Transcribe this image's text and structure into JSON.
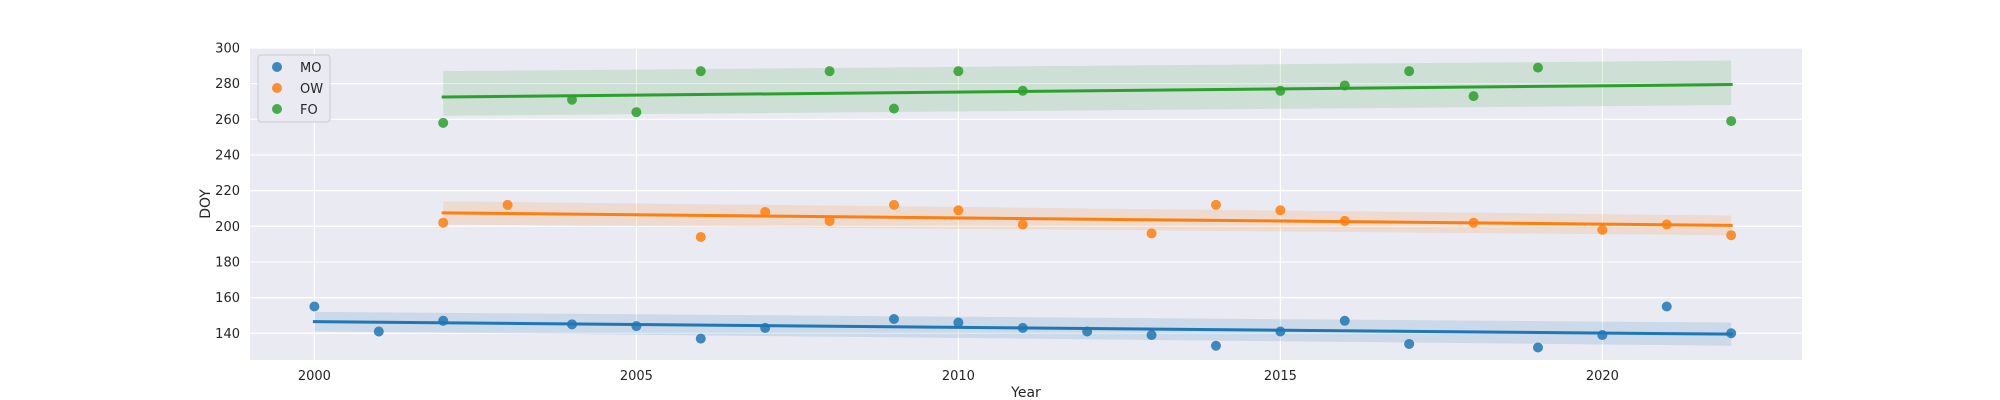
{
  "chart_data": {
    "type": "scatter",
    "title": "",
    "xlabel": "Year",
    "ylabel": "DOY",
    "xlim": [
      1999,
      2023.1
    ],
    "ylim": [
      125,
      300
    ],
    "xticks": [
      2000,
      2005,
      2010,
      2015,
      2020
    ],
    "yticks": [
      140,
      160,
      180,
      200,
      220,
      240,
      260,
      280,
      300
    ],
    "grid": true,
    "legend": "top-left",
    "series": [
      {
        "name": "MO",
        "color": "#1f77b4",
        "points": [
          {
            "x": 2000,
            "y": 155
          },
          {
            "x": 2001,
            "y": 141
          },
          {
            "x": 2002,
            "y": 147
          },
          {
            "x": 2004,
            "y": 145
          },
          {
            "x": 2005,
            "y": 144
          },
          {
            "x": 2006,
            "y": 137
          },
          {
            "x": 2007,
            "y": 143
          },
          {
            "x": 2009,
            "y": 148
          },
          {
            "x": 2010,
            "y": 146
          },
          {
            "x": 2011,
            "y": 143
          },
          {
            "x": 2012,
            "y": 141
          },
          {
            "x": 2013,
            "y": 139
          },
          {
            "x": 2014,
            "y": 133
          },
          {
            "x": 2015,
            "y": 141
          },
          {
            "x": 2016,
            "y": 147
          },
          {
            "x": 2017,
            "y": 134
          },
          {
            "x": 2019,
            "y": 132
          },
          {
            "x": 2020,
            "y": 139
          },
          {
            "x": 2021,
            "y": 155
          },
          {
            "x": 2022,
            "y": 140
          }
        ],
        "trend": {
          "x": [
            2000,
            2022
          ],
          "y": [
            146.5,
            139.5
          ]
        },
        "ci_upper": [
          152,
          146
        ],
        "ci_lower": [
          141,
          133
        ]
      },
      {
        "name": "OW",
        "color": "#ff7f0e",
        "points": [
          {
            "x": 2002,
            "y": 202
          },
          {
            "x": 2003,
            "y": 212
          },
          {
            "x": 2006,
            "y": 194
          },
          {
            "x": 2007,
            "y": 208
          },
          {
            "x": 2008,
            "y": 203
          },
          {
            "x": 2009,
            "y": 212
          },
          {
            "x": 2010,
            "y": 209
          },
          {
            "x": 2011,
            "y": 201
          },
          {
            "x": 2013,
            "y": 196
          },
          {
            "x": 2014,
            "y": 212
          },
          {
            "x": 2015,
            "y": 209
          },
          {
            "x": 2016,
            "y": 203
          },
          {
            "x": 2018,
            "y": 202
          },
          {
            "x": 2020,
            "y": 198
          },
          {
            "x": 2021,
            "y": 201
          },
          {
            "x": 2022,
            "y": 195
          }
        ],
        "trend": {
          "x": [
            2002,
            2022
          ],
          "y": [
            207.5,
            200.5
          ]
        },
        "ci_upper": [
          214,
          206
        ],
        "ci_lower": [
          201,
          195
        ]
      },
      {
        "name": "FO",
        "color": "#2ca02c",
        "points": [
          {
            "x": 2002,
            "y": 258
          },
          {
            "x": 2004,
            "y": 271
          },
          {
            "x": 2005,
            "y": 264
          },
          {
            "x": 2006,
            "y": 287
          },
          {
            "x": 2008,
            "y": 287
          },
          {
            "x": 2009,
            "y": 266
          },
          {
            "x": 2010,
            "y": 287
          },
          {
            "x": 2011,
            "y": 276
          },
          {
            "x": 2015,
            "y": 276
          },
          {
            "x": 2016,
            "y": 279
          },
          {
            "x": 2017,
            "y": 287
          },
          {
            "x": 2018,
            "y": 273
          },
          {
            "x": 2019,
            "y": 289
          },
          {
            "x": 2022,
            "y": 259
          }
        ],
        "trend": {
          "x": [
            2002,
            2022
          ],
          "y": [
            272.5,
            279.5
          ]
        },
        "ci_upper": [
          287,
          293
        ],
        "ci_lower": [
          262,
          268
        ]
      }
    ]
  }
}
